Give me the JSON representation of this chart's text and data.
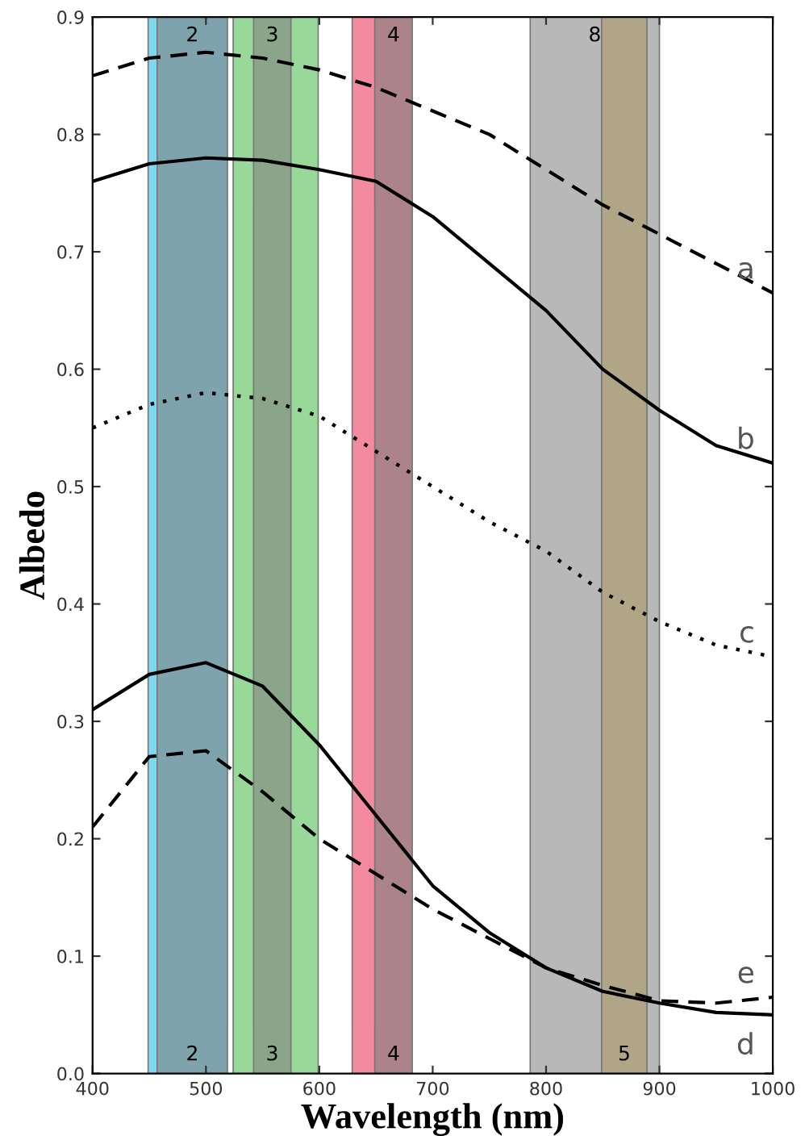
{
  "chart_data": {
    "type": "line",
    "xlabel": "Wavelength (nm)",
    "ylabel": "Albedo",
    "xlim": [
      400,
      1000
    ],
    "xticks": [
      400,
      500,
      600,
      700,
      800,
      900,
      1000
    ],
    "ylim": [
      0,
      0.9
    ],
    "yticks": [
      {
        "value": 0,
        "label": "0.0"
      },
      0.1,
      0.2,
      0.3,
      0.4,
      0.5,
      0.6,
      0.7,
      0.8,
      0.9
    ],
    "grid": false,
    "legend": false,
    "marker": "none",
    "x": [
      400,
      450,
      500,
      550,
      600,
      650,
      700,
      750,
      800,
      850,
      900,
      950,
      1000
    ],
    "series": [
      {
        "name": "a",
        "color": "#000000",
        "line_style": "dashed",
        "values": [
          0.85,
          0.865,
          0.87,
          0.865,
          0.855,
          0.84,
          0.82,
          0.8,
          0.77,
          0.74,
          0.715,
          0.69,
          0.665
        ]
      },
      {
        "name": "b",
        "color": "#000000",
        "line_style": "solid",
        "values": [
          0.76,
          0.775,
          0.78,
          0.778,
          0.77,
          0.76,
          0.73,
          0.69,
          0.65,
          0.6,
          0.565,
          0.535,
          0.52
        ]
      },
      {
        "name": "c",
        "color": "#000000",
        "line_style": "dotted",
        "values": [
          0.55,
          0.57,
          0.58,
          0.575,
          0.56,
          0.53,
          0.5,
          0.47,
          0.445,
          0.41,
          0.385,
          0.365,
          0.355
        ]
      },
      {
        "name": "d",
        "color": "#000000",
        "line_style": "solid",
        "values": [
          0.31,
          0.34,
          0.35,
          0.33,
          0.28,
          0.22,
          0.16,
          0.12,
          0.09,
          0.07,
          0.06,
          0.052,
          0.05
        ]
      },
      {
        "name": "e",
        "color": "#000000",
        "line_style": "dashed",
        "values": [
          0.21,
          0.27,
          0.275,
          0.24,
          0.2,
          0.17,
          0.14,
          0.115,
          0.09,
          0.075,
          0.062,
          0.06,
          0.065
        ]
      }
    ],
    "bands": [
      {
        "axis": "x",
        "from": 449,
        "to": 457,
        "color": "#7fd8f0"
      },
      {
        "axis": "x",
        "from": 457,
        "to": 519,
        "color": "#7ea3ad",
        "label": "2"
      },
      {
        "axis": "x",
        "from": 524,
        "to": 599,
        "color": "#98d99a"
      },
      {
        "axis": "x",
        "from": 542,
        "to": 575,
        "color": "#8aa58a",
        "label": "3"
      },
      {
        "axis": "x",
        "from": 629,
        "to": 649,
        "color": "#f48aa0"
      },
      {
        "axis": "x",
        "from": 649,
        "to": 682,
        "color": "#ab8388",
        "label": "4"
      },
      {
        "axis": "x",
        "from": 786,
        "to": 900,
        "color": "#b8b8b8",
        "label": "8"
      },
      {
        "axis": "x",
        "from": 849,
        "to": 889,
        "color": "#b0a587"
      }
    ],
    "annotations": [
      "2",
      "3",
      "4",
      "5"
    ]
  }
}
